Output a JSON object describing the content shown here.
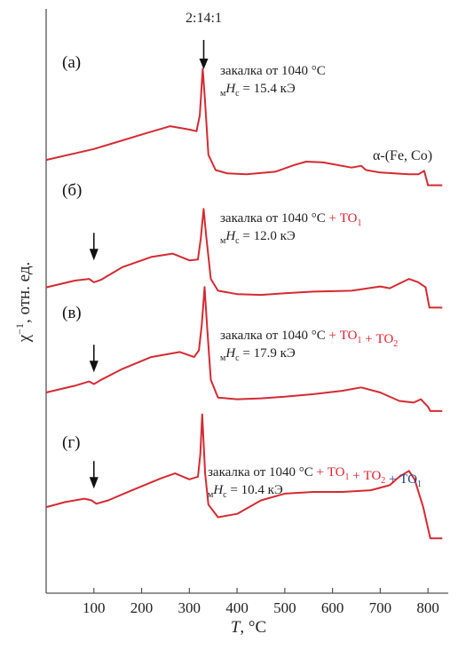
{
  "chart_data": {
    "type": "line",
    "x_axis": {
      "label_symbol": "T",
      "label_unit": ", °C",
      "range": [
        0,
        830
      ],
      "ticks": [
        100,
        200,
        300,
        400,
        500,
        600,
        700,
        800
      ]
    },
    "y_axis": {
      "label_symbol": "χ",
      "label_sup": "−1",
      "label_unit": ", отн. ед."
    },
    "top_marker": {
      "label": "2:14:1",
      "x": 345
    },
    "phase_label": "α-(Fe, Co)",
    "panels": [
      {
        "label": "(а)",
        "annotation": [
          {
            "text": "закалка от 1040 °C",
            "color": "#222222"
          }
        ],
        "hc_prefix": "м",
        "hc_symbol": "H",
        "hc_sub": "c",
        "hc_value": " = 15.4 кЭ",
        "low_arrow_x": null,
        "x": [
          0,
          100,
          200,
          260,
          300,
          315,
          322,
          328,
          333,
          340,
          355,
          380,
          420,
          480,
          520,
          545,
          580,
          640,
          660,
          670,
          700,
          760,
          780,
          792,
          800,
          830
        ],
        "y": [
          0.22,
          0.35,
          0.52,
          0.62,
          0.58,
          0.56,
          0.75,
          1.3,
          0.9,
          0.28,
          0.1,
          0.06,
          0.05,
          0.08,
          0.16,
          0.2,
          0.19,
          0.13,
          0.15,
          0.1,
          0.07,
          0.05,
          0.05,
          0.09,
          -0.08,
          -0.08
        ]
      },
      {
        "label": "(б)",
        "annotation": [
          {
            "text": "закалка от 1040 °C",
            "color": "#222222"
          },
          {
            "text": " + ТО",
            "color": "#e02030",
            "sub": "1"
          }
        ],
        "hc_prefix": "м",
        "hc_symbol": "H",
        "hc_sub": "c",
        "hc_value": " = 12.0 кЭ",
        "low_arrow_x": 100,
        "x": [
          0,
          60,
          90,
          100,
          115,
          160,
          220,
          265,
          300,
          318,
          324,
          330,
          335,
          345,
          360,
          400,
          450,
          500,
          560,
          640,
          700,
          720,
          760,
          780,
          795,
          803,
          830
        ],
        "y": [
          0.12,
          0.2,
          0.22,
          0.18,
          0.21,
          0.36,
          0.48,
          0.52,
          0.44,
          0.45,
          0.7,
          1.05,
          0.75,
          0.22,
          0.08,
          0.04,
          0.03,
          0.05,
          0.07,
          0.08,
          0.13,
          0.11,
          0.22,
          0.18,
          0.12,
          -0.12,
          -0.12
        ]
      },
      {
        "label": "(в)",
        "annotation": [
          {
            "text": "закалка от 1040 °C",
            "color": "#222222"
          },
          {
            "text": " + ТО",
            "color": "#e02030",
            "sub": "1"
          },
          {
            "text": " + ТО",
            "color": "#e02030",
            "sub": "2"
          }
        ],
        "hc_prefix": "м",
        "hc_symbol": "H",
        "hc_sub": "c",
        "hc_value": " = 17.9 кЭ",
        "low_arrow_x": 100,
        "x": [
          0,
          60,
          90,
          100,
          115,
          160,
          220,
          280,
          310,
          320,
          326,
          332,
          337,
          345,
          360,
          400,
          450,
          500,
          560,
          620,
          660,
          700,
          740,
          770,
          785,
          800,
          805,
          830
        ],
        "y": [
          0.2,
          0.28,
          0.33,
          0.3,
          0.35,
          0.48,
          0.62,
          0.68,
          0.62,
          0.7,
          1.0,
          1.45,
          1.0,
          0.35,
          0.14,
          0.12,
          0.13,
          0.15,
          0.18,
          0.22,
          0.26,
          0.2,
          0.1,
          0.08,
          0.12,
          0.03,
          -0.02,
          -0.02
        ]
      },
      {
        "label": "(г)",
        "annotation": [
          {
            "text": "закалка от 1040 °C",
            "color": "#222222"
          },
          {
            "text": " + ТО",
            "color": "#e02030",
            "sub": "1"
          },
          {
            "text": " + ТО",
            "color": "#e02030",
            "sub": "2"
          },
          {
            "text": " + ТО",
            "color": "#1a3f8a",
            "sub": "1"
          }
        ],
        "hc_prefix": "м",
        "hc_symbol": "H",
        "hc_sub": "c",
        "hc_value": " = 10.4 кЭ",
        "low_arrow_x": 100,
        "x": [
          0,
          40,
          80,
          95,
          105,
          130,
          180,
          240,
          270,
          300,
          318,
          323,
          327,
          333,
          340,
          360,
          400,
          450,
          500,
          560,
          620,
          680,
          720,
          740,
          760,
          772,
          790,
          805,
          830
        ],
        "y": [
          0.22,
          0.28,
          0.32,
          0.3,
          0.26,
          0.3,
          0.42,
          0.56,
          0.62,
          0.55,
          0.58,
          0.85,
          1.32,
          0.62,
          0.25,
          0.1,
          0.14,
          0.3,
          0.38,
          0.4,
          0.4,
          0.42,
          0.48,
          0.58,
          0.65,
          0.55,
          0.22,
          -0.15,
          -0.15
        ]
      }
    ],
    "colors": {
      "curve": "#d42a32",
      "red_text": "#e02030",
      "blue_text": "#1a3f8a",
      "axis": "#555555"
    }
  }
}
